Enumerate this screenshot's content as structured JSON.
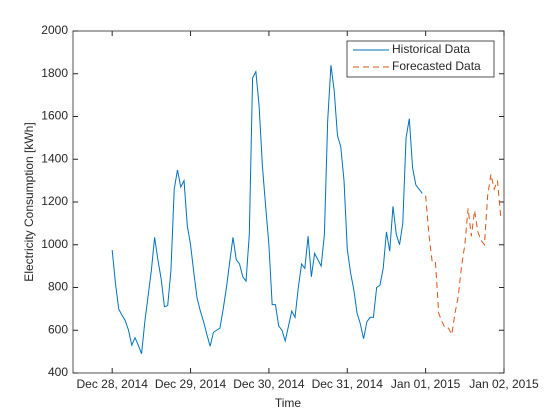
{
  "chart_data": {
    "type": "line",
    "xlabel": "Time",
    "ylabel": "Electricity Consumption [kWh]",
    "xlim": [
      "2014-12-27T12:00",
      "2015-01-02T00:00"
    ],
    "xticks": [
      {
        "value": "2014-12-28T00:00",
        "label": "Dec 28, 2014"
      },
      {
        "value": "2014-12-29T00:00",
        "label": "Dec 29, 2014"
      },
      {
        "value": "2014-12-30T00:00",
        "label": "Dec 30, 2014"
      },
      {
        "value": "2014-12-31T00:00",
        "label": "Dec 31, 2014"
      },
      {
        "value": "2015-01-01T00:00",
        "label": "Jan 01, 2015"
      },
      {
        "value": "2015-01-02T00:00",
        "label": "Jan 02, 2015"
      }
    ],
    "ylim": [
      400,
      2000
    ],
    "yticks": [
      400,
      600,
      800,
      1000,
      1200,
      1400,
      1600,
      1800,
      2000
    ],
    "legend": "northeast",
    "series": [
      {
        "name": "Historical Data",
        "color": "#0072BD",
        "dash": "solid",
        "x": [
          "2014-12-28T00:00",
          "2014-12-28T01:00",
          "2014-12-28T02:00",
          "2014-12-28T03:00",
          "2014-12-28T04:00",
          "2014-12-28T05:00",
          "2014-12-28T06:00",
          "2014-12-28T07:00",
          "2014-12-28T08:00",
          "2014-12-28T09:00",
          "2014-12-28T10:00",
          "2014-12-28T11:00",
          "2014-12-28T12:00",
          "2014-12-28T13:00",
          "2014-12-28T14:00",
          "2014-12-28T15:00",
          "2014-12-28T16:00",
          "2014-12-28T17:00",
          "2014-12-28T18:00",
          "2014-12-28T19:00",
          "2014-12-28T20:00",
          "2014-12-28T21:00",
          "2014-12-28T22:00",
          "2014-12-28T23:00",
          "2014-12-29T00:00",
          "2014-12-29T01:00",
          "2014-12-29T02:00",
          "2014-12-29T03:00",
          "2014-12-29T04:00",
          "2014-12-29T05:00",
          "2014-12-29T06:00",
          "2014-12-29T07:00",
          "2014-12-29T08:00",
          "2014-12-29T09:00",
          "2014-12-29T10:00",
          "2014-12-29T11:00",
          "2014-12-29T12:00",
          "2014-12-29T13:00",
          "2014-12-29T14:00",
          "2014-12-29T15:00",
          "2014-12-29T16:00",
          "2014-12-29T17:00",
          "2014-12-29T18:00",
          "2014-12-29T19:00",
          "2014-12-29T20:00",
          "2014-12-29T21:00",
          "2014-12-29T22:00",
          "2014-12-29T23:00",
          "2014-12-30T00:00",
          "2014-12-30T01:00",
          "2014-12-30T02:00",
          "2014-12-30T03:00",
          "2014-12-30T04:00",
          "2014-12-30T05:00",
          "2014-12-30T06:00",
          "2014-12-30T07:00",
          "2014-12-30T08:00",
          "2014-12-30T09:00",
          "2014-12-30T10:00",
          "2014-12-30T11:00",
          "2014-12-30T12:00",
          "2014-12-30T13:00",
          "2014-12-30T14:00",
          "2014-12-30T15:00",
          "2014-12-30T16:00",
          "2014-12-30T17:00",
          "2014-12-30T18:00",
          "2014-12-30T19:00",
          "2014-12-30T20:00",
          "2014-12-30T21:00",
          "2014-12-30T22:00",
          "2014-12-30T23:00",
          "2014-12-31T00:00",
          "2014-12-31T01:00",
          "2014-12-31T02:00",
          "2014-12-31T03:00",
          "2014-12-31T04:00",
          "2014-12-31T05:00",
          "2014-12-31T06:00",
          "2014-12-31T07:00",
          "2014-12-31T08:00",
          "2014-12-31T09:00",
          "2014-12-31T10:00",
          "2014-12-31T11:00",
          "2014-12-31T12:00",
          "2014-12-31T13:00",
          "2014-12-31T14:00",
          "2014-12-31T15:00",
          "2014-12-31T16:00",
          "2014-12-31T17:00",
          "2014-12-31T18:00",
          "2014-12-31T19:00",
          "2014-12-31T20:00",
          "2014-12-31T21:00",
          "2014-12-31T22:00",
          "2014-12-31T23:00"
        ],
        "values": [
          975,
          820,
          700,
          670,
          645,
          600,
          530,
          565,
          530,
          490,
          640,
          760,
          880,
          1035,
          930,
          840,
          710,
          715,
          880,
          1260,
          1350,
          1270,
          1300,
          1090,
          1000,
          870,
          750,
          690,
          640,
          580,
          525,
          590,
          600,
          610,
          700,
          800,
          920,
          1035,
          930,
          910,
          850,
          830,
          1050,
          1780,
          1810,
          1650,
          1370,
          1180,
          1000,
          720,
          720,
          620,
          600,
          550,
          620,
          690,
          660,
          800,
          910,
          890,
          1040,
          850,
          960,
          930,
          900,
          1050,
          1580,
          1840,
          1720,
          1510,
          1460,
          1300,
          980,
          870,
          790,
          680,
          630,
          560,
          640,
          660,
          660,
          800,
          810,
          890,
          1060,
          970,
          1180,
          1050,
          1000,
          1100,
          1500,
          1590,
          1360,
          1280,
          1260,
          1240
        ]
      },
      {
        "name": "Forecasted Data",
        "color": "#D95319",
        "dash": "dashed",
        "x": [
          "2015-01-01T00:00",
          "2015-01-01T01:00",
          "2015-01-01T02:00",
          "2015-01-01T03:00",
          "2015-01-01T04:00",
          "2015-01-01T05:00",
          "2015-01-01T06:00",
          "2015-01-01T07:00",
          "2015-01-01T08:00",
          "2015-01-01T09:00",
          "2015-01-01T10:00",
          "2015-01-01T11:00",
          "2015-01-01T12:00",
          "2015-01-01T13:00",
          "2015-01-01T14:00",
          "2015-01-01T15:00",
          "2015-01-01T16:00",
          "2015-01-01T17:00",
          "2015-01-01T18:00",
          "2015-01-01T19:00",
          "2015-01-01T20:00",
          "2015-01-01T21:00",
          "2015-01-01T22:00",
          "2015-01-01T23:00"
        ],
        "values": [
          1230,
          1050,
          920,
          920,
          680,
          640,
          610,
          610,
          580,
          680,
          760,
          900,
          1000,
          1170,
          1040,
          1160,
          1060,
          1020,
          1000,
          1230,
          1330,
          1260,
          1300,
          1130
        ]
      }
    ]
  }
}
